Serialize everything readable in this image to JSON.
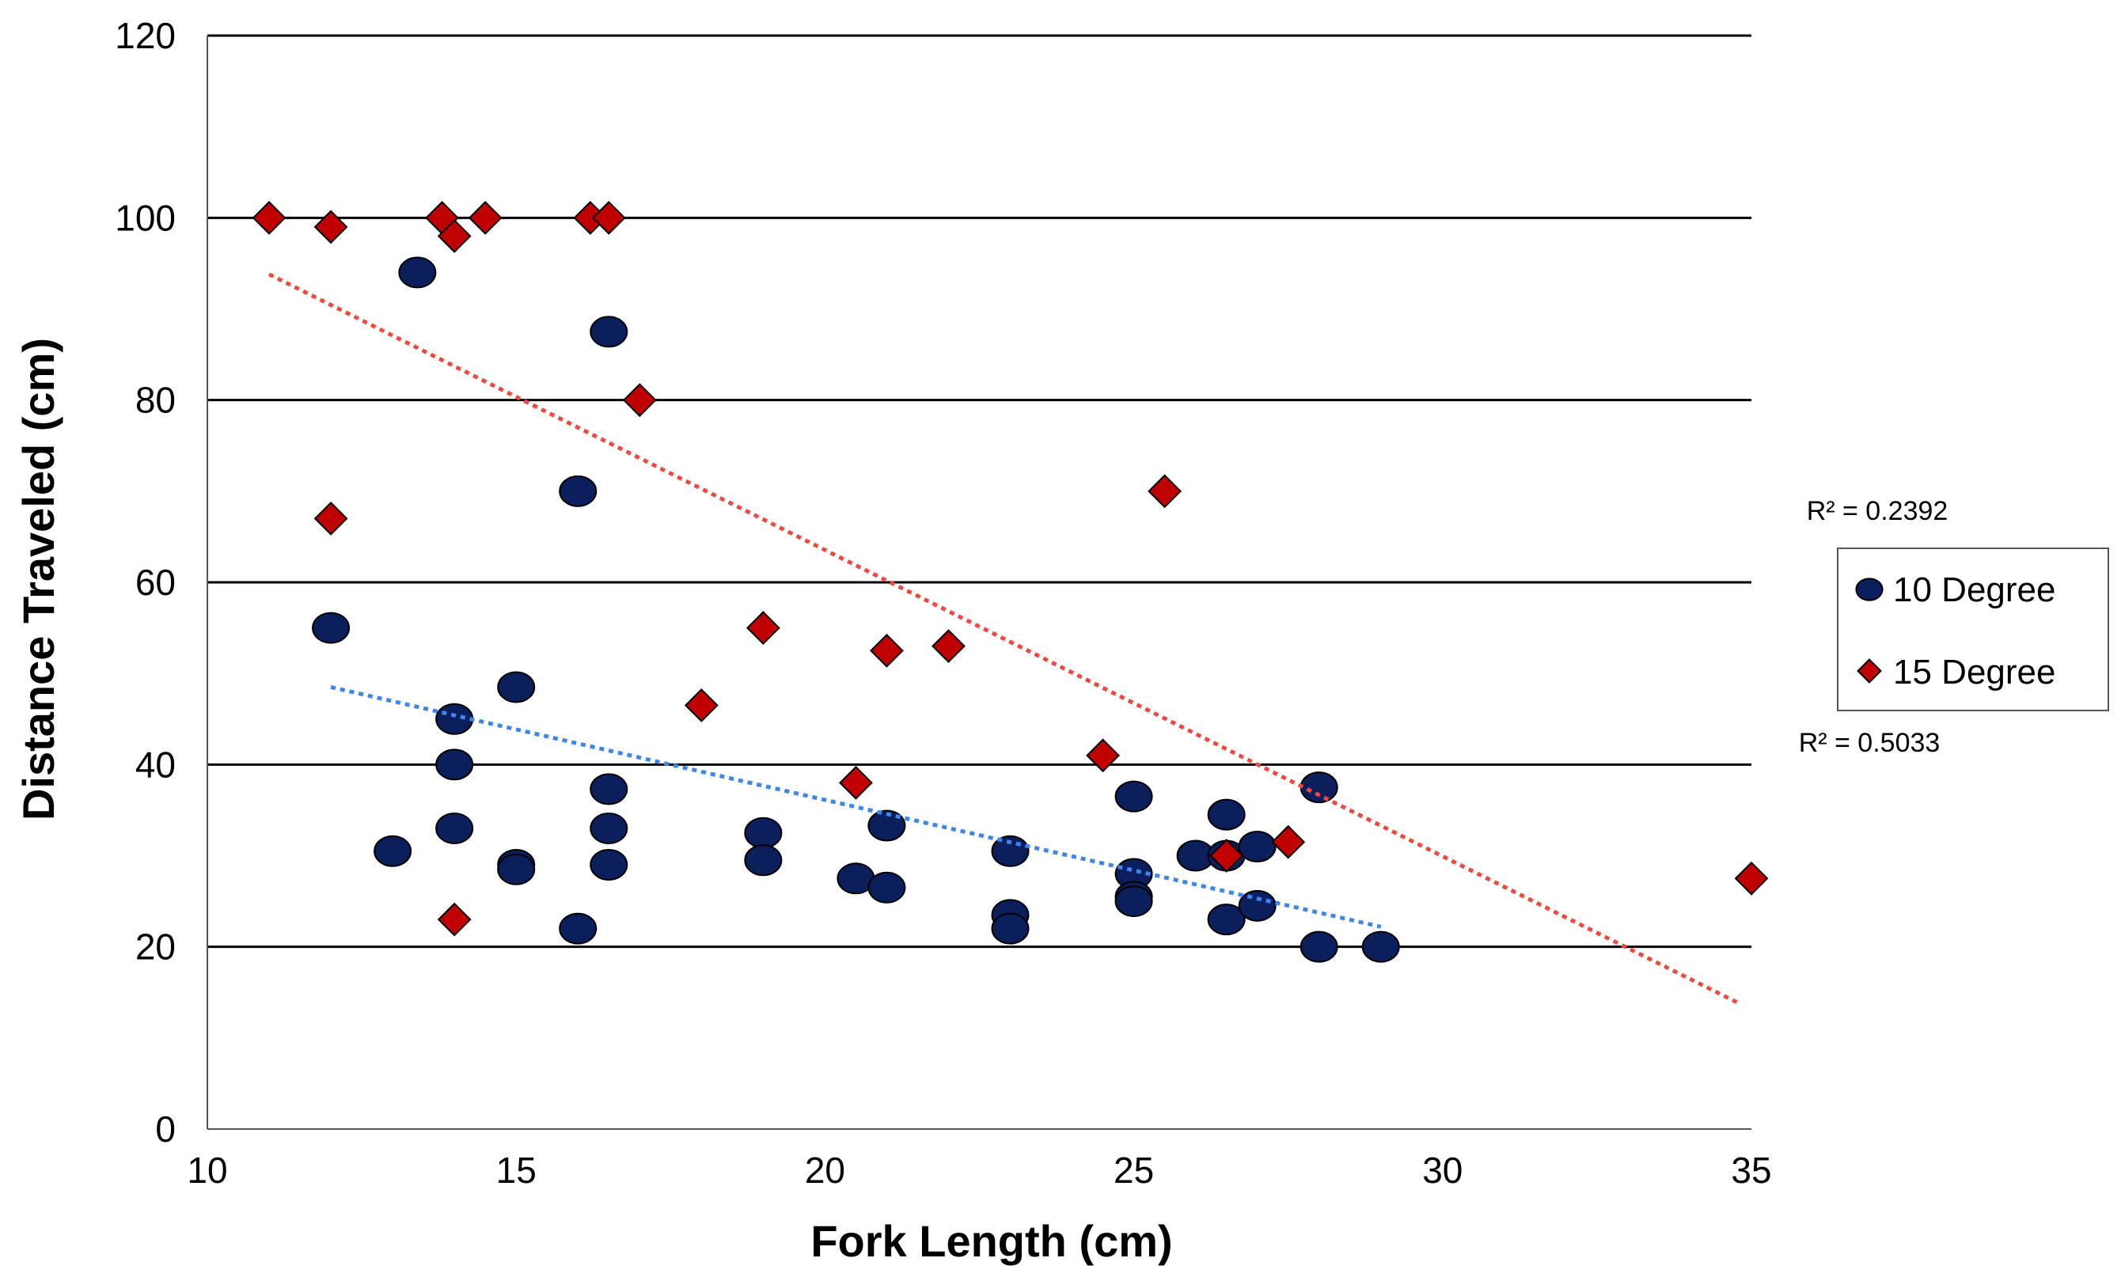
{
  "chart_data": {
    "type": "scatter",
    "title": "",
    "xlabel": "Fork Length (cm)",
    "ylabel": "Distance Traveled (cm)",
    "xlim": [
      10,
      35
    ],
    "ylim": [
      0,
      120
    ],
    "xticks": [
      10,
      15,
      20,
      25,
      30,
      35
    ],
    "yticks": [
      0,
      20,
      40,
      60,
      80,
      100,
      120
    ],
    "grid": "horizontal",
    "legend_position": "right",
    "series": [
      {
        "name": "10 Degree",
        "marker": "circle",
        "color": "#0a1f5c",
        "trend_color": "#3d85f0",
        "r2_label": "R² = 0.5033",
        "trend": {
          "x": [
            12,
            29
          ],
          "y": [
            48.5,
            22.2
          ]
        },
        "points": [
          {
            "x": 12,
            "y": 55
          },
          {
            "x": 13,
            "y": 30.5
          },
          {
            "x": 13.4,
            "y": 94
          },
          {
            "x": 14,
            "y": 45
          },
          {
            "x": 14,
            "y": 40
          },
          {
            "x": 14,
            "y": 33
          },
          {
            "x": 15,
            "y": 48.5
          },
          {
            "x": 15,
            "y": 29
          },
          {
            "x": 15,
            "y": 28.5
          },
          {
            "x": 16,
            "y": 70
          },
          {
            "x": 16,
            "y": 22
          },
          {
            "x": 16.5,
            "y": 87.5
          },
          {
            "x": 16.5,
            "y": 37.3
          },
          {
            "x": 16.5,
            "y": 33
          },
          {
            "x": 16.5,
            "y": 29
          },
          {
            "x": 19,
            "y": 32.5
          },
          {
            "x": 19,
            "y": 29.5
          },
          {
            "x": 20.5,
            "y": 27.5
          },
          {
            "x": 21,
            "y": 33.3
          },
          {
            "x": 21,
            "y": 26.5
          },
          {
            "x": 23,
            "y": 30.5
          },
          {
            "x": 23,
            "y": 23.5
          },
          {
            "x": 23,
            "y": 22
          },
          {
            "x": 25,
            "y": 36.5
          },
          {
            "x": 25,
            "y": 28
          },
          {
            "x": 25,
            "y": 25.5
          },
          {
            "x": 25,
            "y": 25
          },
          {
            "x": 26,
            "y": 30
          },
          {
            "x": 26.5,
            "y": 34.5
          },
          {
            "x": 26.5,
            "y": 30
          },
          {
            "x": 26.5,
            "y": 23
          },
          {
            "x": 27,
            "y": 31
          },
          {
            "x": 27,
            "y": 24.5
          },
          {
            "x": 28,
            "y": 37.5
          },
          {
            "x": 28,
            "y": 20
          },
          {
            "x": 29,
            "y": 20
          }
        ]
      },
      {
        "name": "15 Degree",
        "marker": "diamond",
        "color": "#c00000",
        "trend_color": "#f0483c",
        "r2_label": "R² = 0.2392",
        "trend": {
          "x": [
            11,
            34.8
          ],
          "y": [
            93.8,
            13.8
          ]
        },
        "points": [
          {
            "x": 11,
            "y": 100
          },
          {
            "x": 12,
            "y": 99
          },
          {
            "x": 12,
            "y": 67
          },
          {
            "x": 13.8,
            "y": 100
          },
          {
            "x": 14,
            "y": 98
          },
          {
            "x": 14,
            "y": 23
          },
          {
            "x": 14.5,
            "y": 100
          },
          {
            "x": 16.2,
            "y": 100
          },
          {
            "x": 16.5,
            "y": 100
          },
          {
            "x": 17,
            "y": 80
          },
          {
            "x": 18,
            "y": 46.5
          },
          {
            "x": 19,
            "y": 55
          },
          {
            "x": 20.5,
            "y": 38
          },
          {
            "x": 21,
            "y": 52.5
          },
          {
            "x": 22,
            "y": 53
          },
          {
            "x": 24.5,
            "y": 41
          },
          {
            "x": 25.5,
            "y": 70
          },
          {
            "x": 26.5,
            "y": 30
          },
          {
            "x": 27.5,
            "y": 31.5
          },
          {
            "x": 35,
            "y": 27.5
          }
        ]
      }
    ]
  }
}
